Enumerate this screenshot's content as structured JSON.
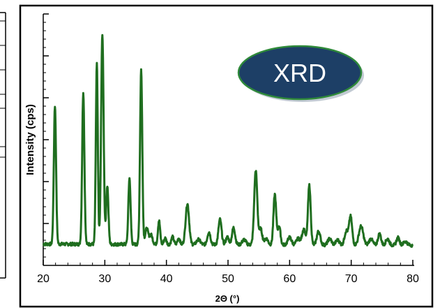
{
  "chart_data": {
    "type": "line",
    "title": "",
    "badge": "XRD",
    "xlabel": "2Θ (°)",
    "ylabel": "Intensity (cps)",
    "xlim": [
      20,
      80
    ],
    "xticks": [
      "20",
      "30",
      "40",
      "50",
      "60",
      "70",
      "80"
    ],
    "y_tick_labels_shown": false,
    "grid": false,
    "series": [
      {
        "color": "#1f6e1f",
        "baseline": 0.34,
        "peaks": [
          [
            21.9,
            2.2,
            0.18
          ],
          [
            26.5,
            2.42,
            0.18
          ],
          [
            28.7,
            2.87,
            0.16
          ],
          [
            29.6,
            3.35,
            0.2
          ],
          [
            30.4,
            0.93,
            0.18
          ],
          [
            34.0,
            1.05,
            0.18
          ],
          [
            35.9,
            2.78,
            0.18
          ],
          [
            36.8,
            0.25,
            0.25
          ],
          [
            37.5,
            0.15,
            0.25
          ],
          [
            38.8,
            0.38,
            0.18
          ],
          [
            39.8,
            0.1,
            0.2
          ],
          [
            41.0,
            0.12,
            0.2
          ],
          [
            42.0,
            0.1,
            0.2
          ],
          [
            43.4,
            0.65,
            0.28
          ],
          [
            45.2,
            0.08,
            0.3
          ],
          [
            46.9,
            0.2,
            0.25
          ],
          [
            48.7,
            0.4,
            0.25
          ],
          [
            49.9,
            0.12,
            0.25
          ],
          [
            50.9,
            0.27,
            0.25
          ],
          [
            52.6,
            0.08,
            0.3
          ],
          [
            54.5,
            1.18,
            0.25
          ],
          [
            55.3,
            0.25,
            0.25
          ],
          [
            56.2,
            0.1,
            0.3
          ],
          [
            57.6,
            0.8,
            0.22
          ],
          [
            58.3,
            0.3,
            0.22
          ],
          [
            60.0,
            0.12,
            0.3
          ],
          [
            61.4,
            0.1,
            0.3
          ],
          [
            62.3,
            0.25,
            0.28
          ],
          [
            63.2,
            0.95,
            0.22
          ],
          [
            64.7,
            0.22,
            0.28
          ],
          [
            66.5,
            0.1,
            0.3
          ],
          [
            67.8,
            0.08,
            0.3
          ],
          [
            69.2,
            0.22,
            0.28
          ],
          [
            69.9,
            0.45,
            0.25
          ],
          [
            71.6,
            0.3,
            0.35
          ],
          [
            73.2,
            0.1,
            0.3
          ],
          [
            74.6,
            0.18,
            0.25
          ],
          [
            75.9,
            0.1,
            0.28
          ],
          [
            77.6,
            0.12,
            0.25
          ],
          [
            78.8,
            0.06,
            0.3
          ]
        ]
      }
    ]
  },
  "colors": {
    "line": "#1f6e1f",
    "badge_fill": "#1d3f66",
    "badge_text": "#ffffff",
    "badge_edge": "#2f8a3a",
    "frame": "#000000"
  }
}
